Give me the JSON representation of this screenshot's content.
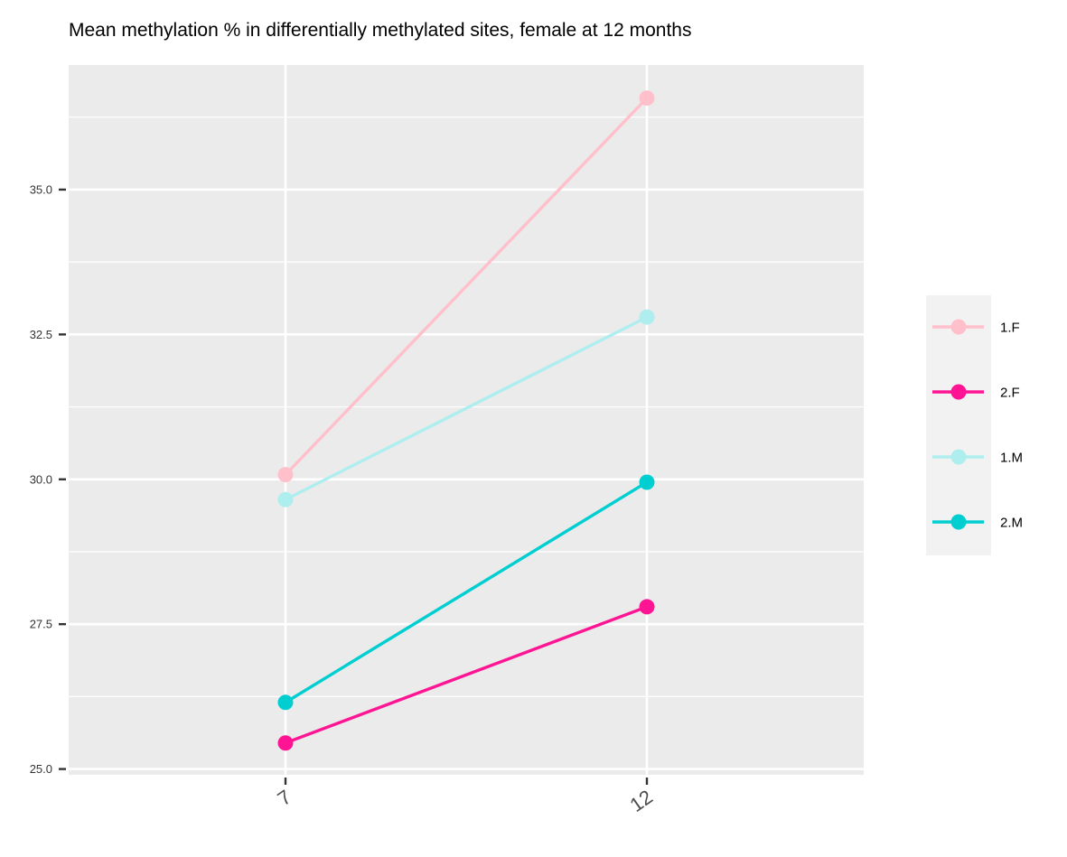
{
  "chart_data": {
    "type": "line",
    "title": "Mean methylation % in differentially methylated sites, female at 12 months",
    "xlabel": "",
    "ylabel": "",
    "categories": [
      "7",
      "12"
    ],
    "x_tick_labels": [
      "7",
      "12"
    ],
    "y_tick_labels": [
      "25.0",
      "27.5",
      "30.0",
      "32.5",
      "35.0"
    ],
    "y_ticks": [
      25.0,
      27.5,
      30.0,
      32.5,
      35.0
    ],
    "ylim": [
      24.9,
      37.15
    ],
    "grid": true,
    "legend_position": "right",
    "series": [
      {
        "name": "1.F",
        "color": "#FFC0CB",
        "values": [
          30.08,
          36.58
        ]
      },
      {
        "name": "2.F",
        "color": "#FF1493",
        "values": [
          25.45,
          27.8
        ]
      },
      {
        "name": "1.M",
        "color": "#AFEEEE",
        "values": [
          29.65,
          32.8
        ]
      },
      {
        "name": "2.M",
        "color": "#00CED1",
        "values": [
          26.15,
          29.95
        ]
      }
    ]
  }
}
